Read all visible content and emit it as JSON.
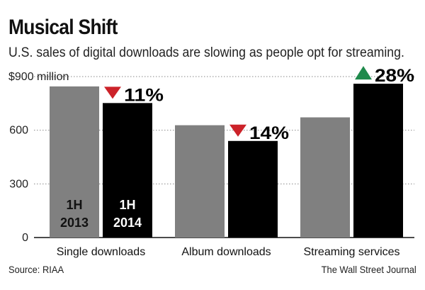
{
  "header": {
    "title": "Musical Shift",
    "subtitle": "U.S. sales of digital downloads are slowing as people opt for streaming."
  },
  "footer": {
    "source": "Source: RIAA",
    "credit": "The Wall Street Journal"
  },
  "chart_data": {
    "type": "bar",
    "title": "Musical Shift",
    "subtitle": "U.S. sales of digital downloads are slowing as people opt for streaming.",
    "ylabel": "",
    "ylim": [
      0,
      900
    ],
    "yticks": [
      0,
      300,
      600,
      900
    ],
    "ytick_labels": [
      "0",
      "300",
      "600",
      "$900 million"
    ],
    "categories": [
      "Single downloads",
      "Album downloads",
      "Streaming services"
    ],
    "series": [
      {
        "name": "1H 2013",
        "label_line1": "1H",
        "label_line2": "2013",
        "color": "#808080",
        "values": [
          845,
          628,
          672
        ]
      },
      {
        "name": "1H 2014",
        "label_line1": "1H",
        "label_line2": "2014",
        "color": "#000000",
        "values": [
          752,
          540,
          860
        ]
      }
    ],
    "changes": [
      {
        "text": "11%",
        "direction": "down",
        "color": "#cc2229"
      },
      {
        "text": "14%",
        "direction": "down",
        "color": "#cc2229"
      },
      {
        "text": "28%",
        "direction": "up",
        "color": "#1f8a4c"
      }
    ],
    "grid": true,
    "grid_style": "dotted",
    "legend": "inside-first-group"
  }
}
